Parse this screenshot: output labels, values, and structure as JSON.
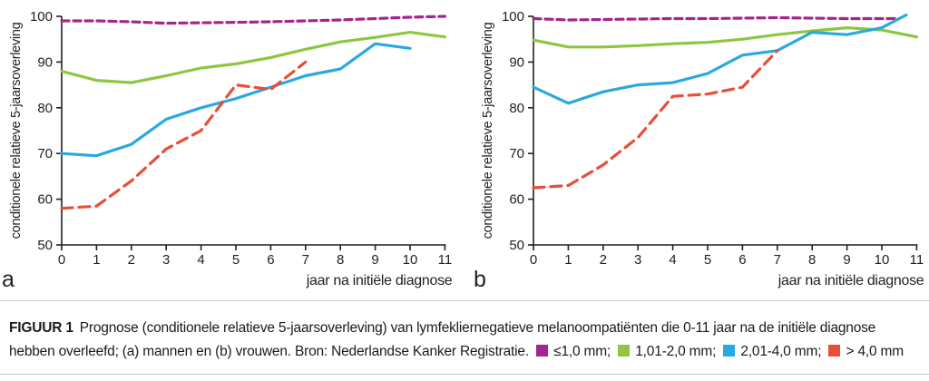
{
  "page": {
    "background": "#ffffff",
    "rule_color": "#c9c9c9"
  },
  "figure": {
    "caption_label": "FIGUUR 1",
    "caption_text": "Prognose (conditionele relatieve 5-jaarsoverleving) van lymfekliernegatieve melanoompatiënten die 0-11 jaar na de initiële diagnose hebben overleefd; (a) mannen en (b) vrouwen. Bron: Nederlandse Kanker Registratie.",
    "legend": [
      {
        "label": "≤1,0 mm",
        "color": "#A1278E"
      },
      {
        "label": "1,01-2,0 mm",
        "color": "#8DC63F"
      },
      {
        "label": "2,01-4,0 mm",
        "color": "#29A9DF"
      },
      {
        "label": "> 4,0 mm",
        "color": "#E84E3A"
      }
    ]
  },
  "chart_data": [
    {
      "type": "line",
      "panel": "a",
      "panel_meaning": "mannen",
      "xlabel": "jaar na initiële diagnose",
      "ylabel": "conditionele relatieve 5-jaarsoverleving",
      "xlim": [
        0,
        11
      ],
      "ylim": [
        50,
        100
      ],
      "xticks": [
        0,
        1,
        2,
        3,
        4,
        5,
        6,
        7,
        8,
        9,
        10,
        11
      ],
      "yticks": [
        50,
        60,
        70,
        80,
        90,
        100
      ],
      "grid": false,
      "legend_position": "in-caption",
      "series": [
        {
          "name": "≤1,0 mm",
          "color": "#A1278E",
          "style": "dashed-short",
          "x": [
            0,
            1,
            2,
            3,
            4,
            5,
            6,
            7,
            8,
            9,
            10,
            11
          ],
          "y": [
            99,
            99,
            98.8,
            98.5,
            98.6,
            98.7,
            98.8,
            99,
            99.2,
            99.5,
            99.8,
            100
          ]
        },
        {
          "name": "1,01-2,0 mm",
          "color": "#8DC63F",
          "style": "solid",
          "x": [
            0,
            1,
            2,
            3,
            4,
            5,
            6,
            7,
            8,
            9,
            10,
            11
          ],
          "y": [
            88,
            86,
            85.5,
            87,
            88.7,
            89.6,
            91,
            92.8,
            94.4,
            95.4,
            96.5,
            95.5
          ]
        },
        {
          "name": "2,01-4,0 mm",
          "color": "#29A9DF",
          "style": "solid",
          "x": [
            0,
            1,
            2,
            3,
            4,
            5,
            6,
            7,
            8,
            9,
            10
          ],
          "y": [
            70,
            69.5,
            72,
            77.5,
            80,
            82,
            84.5,
            87,
            88.5,
            94,
            93
          ]
        },
        {
          "name": "> 4,0 mm",
          "color": "#E84E3A",
          "style": "dashed-long",
          "x": [
            0,
            1,
            2,
            3,
            4,
            5,
            6,
            7
          ],
          "y": [
            58,
            58.5,
            64,
            71,
            75,
            85,
            84,
            90
          ]
        }
      ]
    },
    {
      "type": "line",
      "panel": "b",
      "panel_meaning": "vrouwen",
      "xlabel": "jaar na initiële diagnose",
      "ylabel": "conditionele relatieve 5-jaarsoverleving",
      "xlim": [
        0,
        11
      ],
      "ylim": [
        50,
        100
      ],
      "xticks": [
        0,
        1,
        2,
        3,
        4,
        5,
        6,
        7,
        8,
        9,
        10,
        11
      ],
      "yticks": [
        50,
        60,
        70,
        80,
        90,
        100
      ],
      "grid": false,
      "legend_position": "in-caption",
      "series": [
        {
          "name": "≤1,0 mm",
          "color": "#A1278E",
          "style": "dashed-short",
          "x": [
            0,
            1,
            2,
            3,
            4,
            5,
            6,
            7,
            8,
            9,
            10,
            10.5
          ],
          "y": [
            99.5,
            99.2,
            99.3,
            99.4,
            99.5,
            99.5,
            99.6,
            99.7,
            99.6,
            99.5,
            99.5,
            99.5
          ]
        },
        {
          "name": "1,01-2,0 mm",
          "color": "#8DC63F",
          "style": "solid",
          "x": [
            0,
            1,
            2,
            3,
            4,
            5,
            6,
            7,
            8,
            9,
            10,
            11
          ],
          "y": [
            94.8,
            93.3,
            93.3,
            93.6,
            94,
            94.3,
            95,
            96,
            96.8,
            97.5,
            97,
            95.5
          ]
        },
        {
          "name": "2,01-4,0 mm",
          "color": "#29A9DF",
          "style": "solid",
          "x": [
            0,
            1,
            2,
            3,
            4,
            5,
            6,
            7,
            8,
            9,
            10,
            10.7
          ],
          "y": [
            84.5,
            81,
            83.5,
            85,
            85.5,
            87.5,
            91.5,
            92.5,
            96.5,
            96,
            97.5,
            100.3
          ]
        },
        {
          "name": "> 4,0 mm",
          "color": "#E84E3A",
          "style": "dashed-long",
          "x": [
            0,
            1,
            2,
            3,
            4,
            5,
            6,
            7
          ],
          "y": [
            62.5,
            63,
            67.5,
            73.5,
            82.5,
            83,
            84.5,
            92.5
          ]
        }
      ]
    }
  ]
}
